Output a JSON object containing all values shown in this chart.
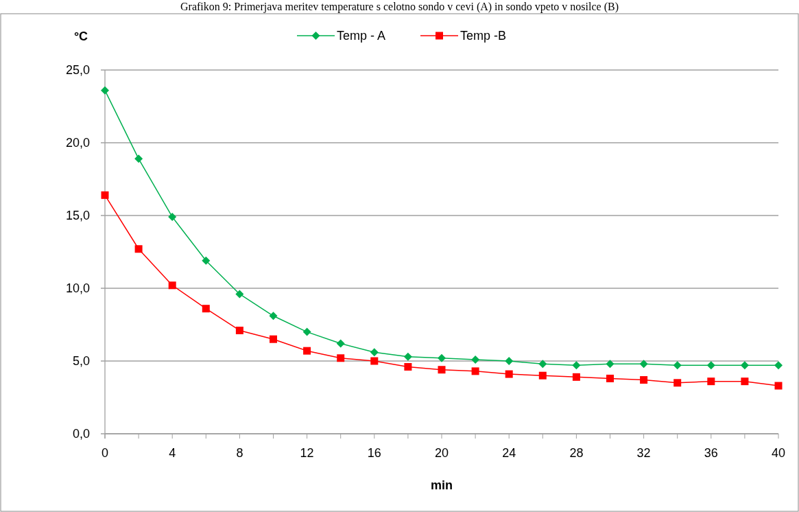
{
  "chart_data": {
    "type": "line",
    "title": "Grafikon 9: Primerjava meritev temperature s celotno sondo v cevi (A) in sondo vpeto v nosilce (B)",
    "xlabel": "min",
    "ylabel": "°C",
    "x": [
      0,
      2,
      4,
      6,
      8,
      10,
      12,
      14,
      16,
      18,
      20,
      22,
      24,
      26,
      28,
      30,
      32,
      34,
      36,
      38,
      40
    ],
    "series": [
      {
        "name": "Temp - A",
        "color": "#00b050",
        "marker": "diamond",
        "values": [
          23.6,
          18.9,
          14.9,
          11.9,
          9.6,
          8.1,
          7.0,
          6.2,
          5.6,
          5.3,
          5.2,
          5.1,
          5.0,
          4.8,
          4.7,
          4.8,
          4.8,
          4.7,
          4.7,
          4.7,
          4.7
        ]
      },
      {
        "name": "Temp -B",
        "color": "#ff0000",
        "marker": "square",
        "values": [
          16.4,
          12.7,
          10.2,
          8.6,
          7.1,
          6.5,
          5.7,
          5.2,
          5.0,
          4.6,
          4.4,
          4.3,
          4.1,
          4.0,
          3.9,
          3.8,
          3.7,
          3.5,
          3.6,
          3.6,
          3.3
        ]
      }
    ],
    "xlim": [
      0,
      40
    ],
    "xticks": [
      0,
      4,
      8,
      12,
      16,
      20,
      24,
      28,
      32,
      36,
      40
    ],
    "ylim": [
      0,
      25
    ],
    "yticks": [
      {
        "value": 0,
        "label": "0,0"
      },
      {
        "value": 5,
        "label": "5,0"
      },
      {
        "value": 10,
        "label": "10,0"
      },
      {
        "value": 15,
        "label": "15,0"
      },
      {
        "value": 20,
        "label": "20,0"
      },
      {
        "value": 25,
        "label": "25,0"
      }
    ],
    "grid": "y",
    "legend": "top"
  }
}
